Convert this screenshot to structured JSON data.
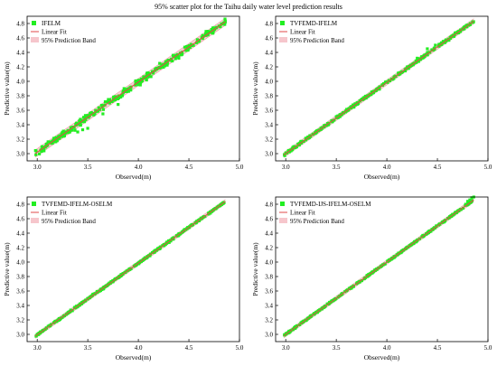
{
  "title": "95% scatter plot for the Taihu daily water level prediction results",
  "colors": {
    "points": "#22ee22",
    "fit_line": "#e04848",
    "band": "#f6c6cc"
  },
  "chart_data": [
    {
      "type": "scatter",
      "legend": {
        "placement": "top-left",
        "points": "IFELM",
        "fit": "Linear Fit",
        "band": "95% Prediction Band"
      },
      "xlabel": "Observed(m)",
      "ylabel": "Predictive value(m)",
      "xlim": [
        2.9,
        5.0
      ],
      "ylim": [
        2.9,
        4.9
      ],
      "xticks": [
        "3.0",
        "3.5",
        "4.0",
        "4.5",
        "5.0"
      ],
      "yticks": [
        "3.0",
        "3.2",
        "3.4",
        "3.6",
        "3.8",
        "4.0",
        "4.2",
        "4.4",
        "4.6",
        "4.8"
      ],
      "fit": {
        "slope": 0.97,
        "intercept": 0.11
      },
      "band_halfwidth": 0.05,
      "noise": 0.045,
      "x_range": [
        2.98,
        4.86
      ],
      "outliers": [
        [
          3.4,
          3.3
        ],
        [
          3.45,
          3.33
        ],
        [
          3.5,
          3.35
        ],
        [
          3.8,
          3.68
        ],
        [
          3.65,
          3.55
        ],
        [
          4.02,
          3.95
        ],
        [
          4.18,
          4.18
        ],
        [
          4.4,
          4.32
        ]
      ]
    },
    {
      "type": "scatter",
      "legend": {
        "placement": "top-left",
        "points": "TVFEMD-IFELM",
        "fit": "Linear Fit",
        "band": "95% Prediction Band"
      },
      "xlabel": "Observed(m)",
      "ylabel": "Predictive value(m)",
      "xlim": [
        2.9,
        5.0
      ],
      "ylim": [
        2.9,
        4.9
      ],
      "xticks": [
        "3.0",
        "3.5",
        "4.0",
        "4.5",
        "5.0"
      ],
      "yticks": [
        "3.0",
        "3.2",
        "3.4",
        "3.6",
        "3.8",
        "4.0",
        "4.2",
        "4.4",
        "4.6",
        "4.8"
      ],
      "fit": {
        "slope": 0.985,
        "intercept": 0.045
      },
      "band_halfwidth": 0.035,
      "noise": 0.02,
      "x_range": [
        2.98,
        4.86
      ],
      "outliers": [
        [
          4.3,
          4.32
        ],
        [
          4.4,
          4.45
        ],
        [
          4.48,
          4.5
        ]
      ]
    },
    {
      "type": "scatter",
      "legend": {
        "placement": "top-left",
        "points": "TVFEMD-IFELM-OSELM",
        "fit": "Linear Fit",
        "band": "95% Prediction Band"
      },
      "xlabel": "Observed(m)",
      "ylabel": "Predictive value(m)",
      "xlim": [
        2.9,
        5.0
      ],
      "ylim": [
        2.9,
        4.9
      ],
      "xticks": [
        "3.0",
        "3.5",
        "4.0",
        "4.5",
        "5.0"
      ],
      "yticks": [
        "3.0",
        "3.2",
        "3.4",
        "3.6",
        "3.8",
        "4.0",
        "4.2",
        "4.4",
        "4.6",
        "4.8"
      ],
      "fit": {
        "slope": 0.99,
        "intercept": 0.025
      },
      "band_halfwidth": 0.03,
      "noise": 0.012,
      "x_range": [
        2.98,
        4.86
      ],
      "outliers": []
    },
    {
      "type": "scatter",
      "legend": {
        "placement": "top-left",
        "points": "TVFEMD-IJS-IFELM-OSELM",
        "fit": "Linear Fit",
        "band": "95% Prediction Band"
      },
      "xlabel": "Observed(m)",
      "ylabel": "Predictive value(m)",
      "xlim": [
        2.9,
        5.0
      ],
      "ylim": [
        2.9,
        4.9
      ],
      "xticks": [
        "3.0",
        "3.5",
        "4.0",
        "4.5",
        "5.0"
      ],
      "yticks": [
        "3.0",
        "3.2",
        "3.4",
        "3.6",
        "3.8",
        "4.0",
        "4.2",
        "4.4",
        "4.6",
        "4.8"
      ],
      "fit": {
        "slope": 1.0,
        "intercept": 0.0
      },
      "band_halfwidth": 0.03,
      "noise": 0.01,
      "x_range": [
        2.98,
        4.86
      ],
      "outliers": [
        [
          4.78,
          4.8
        ],
        [
          4.8,
          4.84
        ],
        [
          4.82,
          4.86
        ],
        [
          4.84,
          4.89
        ],
        [
          4.86,
          4.9
        ]
      ]
    }
  ]
}
